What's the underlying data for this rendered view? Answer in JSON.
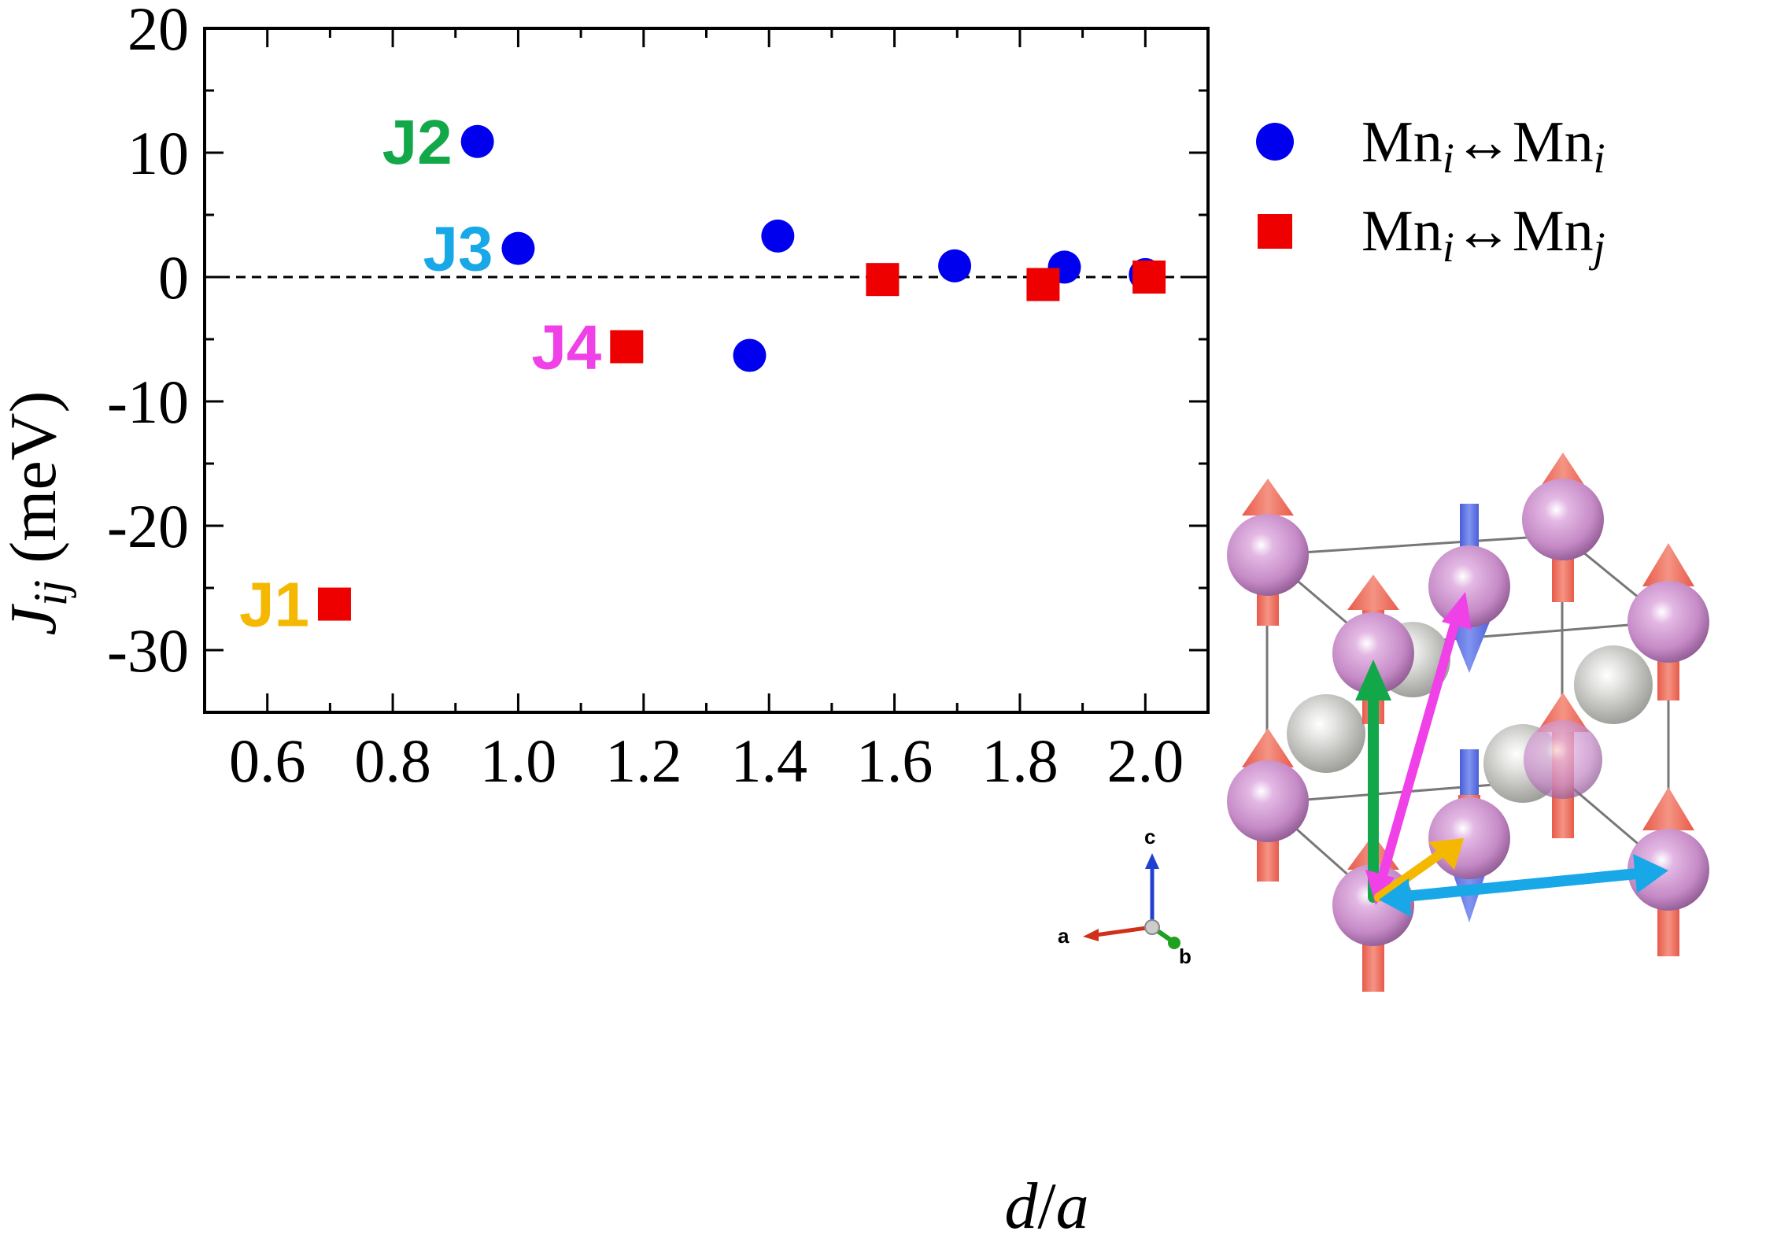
{
  "chart_data": {
    "type": "scatter",
    "title": "",
    "xlabel": {
      "main": "d",
      "sep": "/",
      "sub": "a"
    },
    "ylabel": {
      "main": "J",
      "sub": "ij",
      "unit": " (meV)"
    },
    "xlim": [
      0.5,
      2.1
    ],
    "ylim": [
      -35,
      20
    ],
    "x_ticks": [
      0.6,
      0.8,
      1.0,
      1.2,
      1.4,
      1.6,
      1.8,
      2.0
    ],
    "x_tick_labels": [
      "0.6",
      "0.8",
      "1.0",
      "1.2",
      "1.4",
      "1.6",
      "1.8",
      "2.0"
    ],
    "y_ticks": [
      20,
      10,
      0,
      -10,
      -20,
      -30
    ],
    "y_tick_labels": [
      "20",
      "10",
      "0",
      "-10",
      "-20",
      "-30"
    ],
    "zero_line": true,
    "grid": false,
    "legend_position": "top-right",
    "series": [
      {
        "name": "Mn_i<->Mn_i",
        "legend": {
          "a": "Mn",
          "a_sub": "i",
          "arrow": "↔",
          "b": "Mn",
          "b_sub": "i"
        },
        "marker": "circle",
        "color": "#0000ee",
        "points": [
          {
            "x": 0.935,
            "y": 10.9
          },
          {
            "x": 1.0,
            "y": 2.3
          },
          {
            "x": 1.414,
            "y": 3.3
          },
          {
            "x": 1.369,
            "y": -6.3
          },
          {
            "x": 1.696,
            "y": 0.9
          },
          {
            "x": 1.871,
            "y": 0.8
          },
          {
            "x": 2.0,
            "y": 0.2
          }
        ]
      },
      {
        "name": "Mn_i<->Mn_j",
        "legend": {
          "a": "Mn",
          "a_sub": "i",
          "arrow": "↔",
          "b": "Mn",
          "b_sub": "j"
        },
        "marker": "square",
        "color": "#ee0000",
        "points": [
          {
            "x": 0.707,
            "y": -26.3
          },
          {
            "x": 1.173,
            "y": -5.6
          },
          {
            "x": 1.581,
            "y": -0.2
          },
          {
            "x": 1.837,
            "y": -0.6
          },
          {
            "x": 2.006,
            "y": 0.0
          }
        ]
      }
    ],
    "annotations": [
      {
        "text": "J1",
        "x": 0.707,
        "y": -26.3,
        "color": "#f5b800"
      },
      {
        "text": "J2",
        "x": 0.935,
        "y": 10.9,
        "color": "#12a84a"
      },
      {
        "text": "J3",
        "x": 1.0,
        "y": 2.3,
        "color": "#18a8e8"
      },
      {
        "text": "J4",
        "x": 1.173,
        "y": -5.6,
        "color": "#f040e8"
      }
    ],
    "inset": {
      "description_labels": {
        "a": "a",
        "b": "b",
        "c": "c"
      },
      "bond_colors": {
        "J1": "#f5b800",
        "J2": "#12a84a",
        "J3": "#18a8e8",
        "J4": "#f040e8"
      },
      "atom_colors": {
        "mn": "#c58ac6",
        "other": "#d8d8d4",
        "spin_up": "#f07c6c",
        "spin_down": "#6c80e8"
      }
    }
  }
}
